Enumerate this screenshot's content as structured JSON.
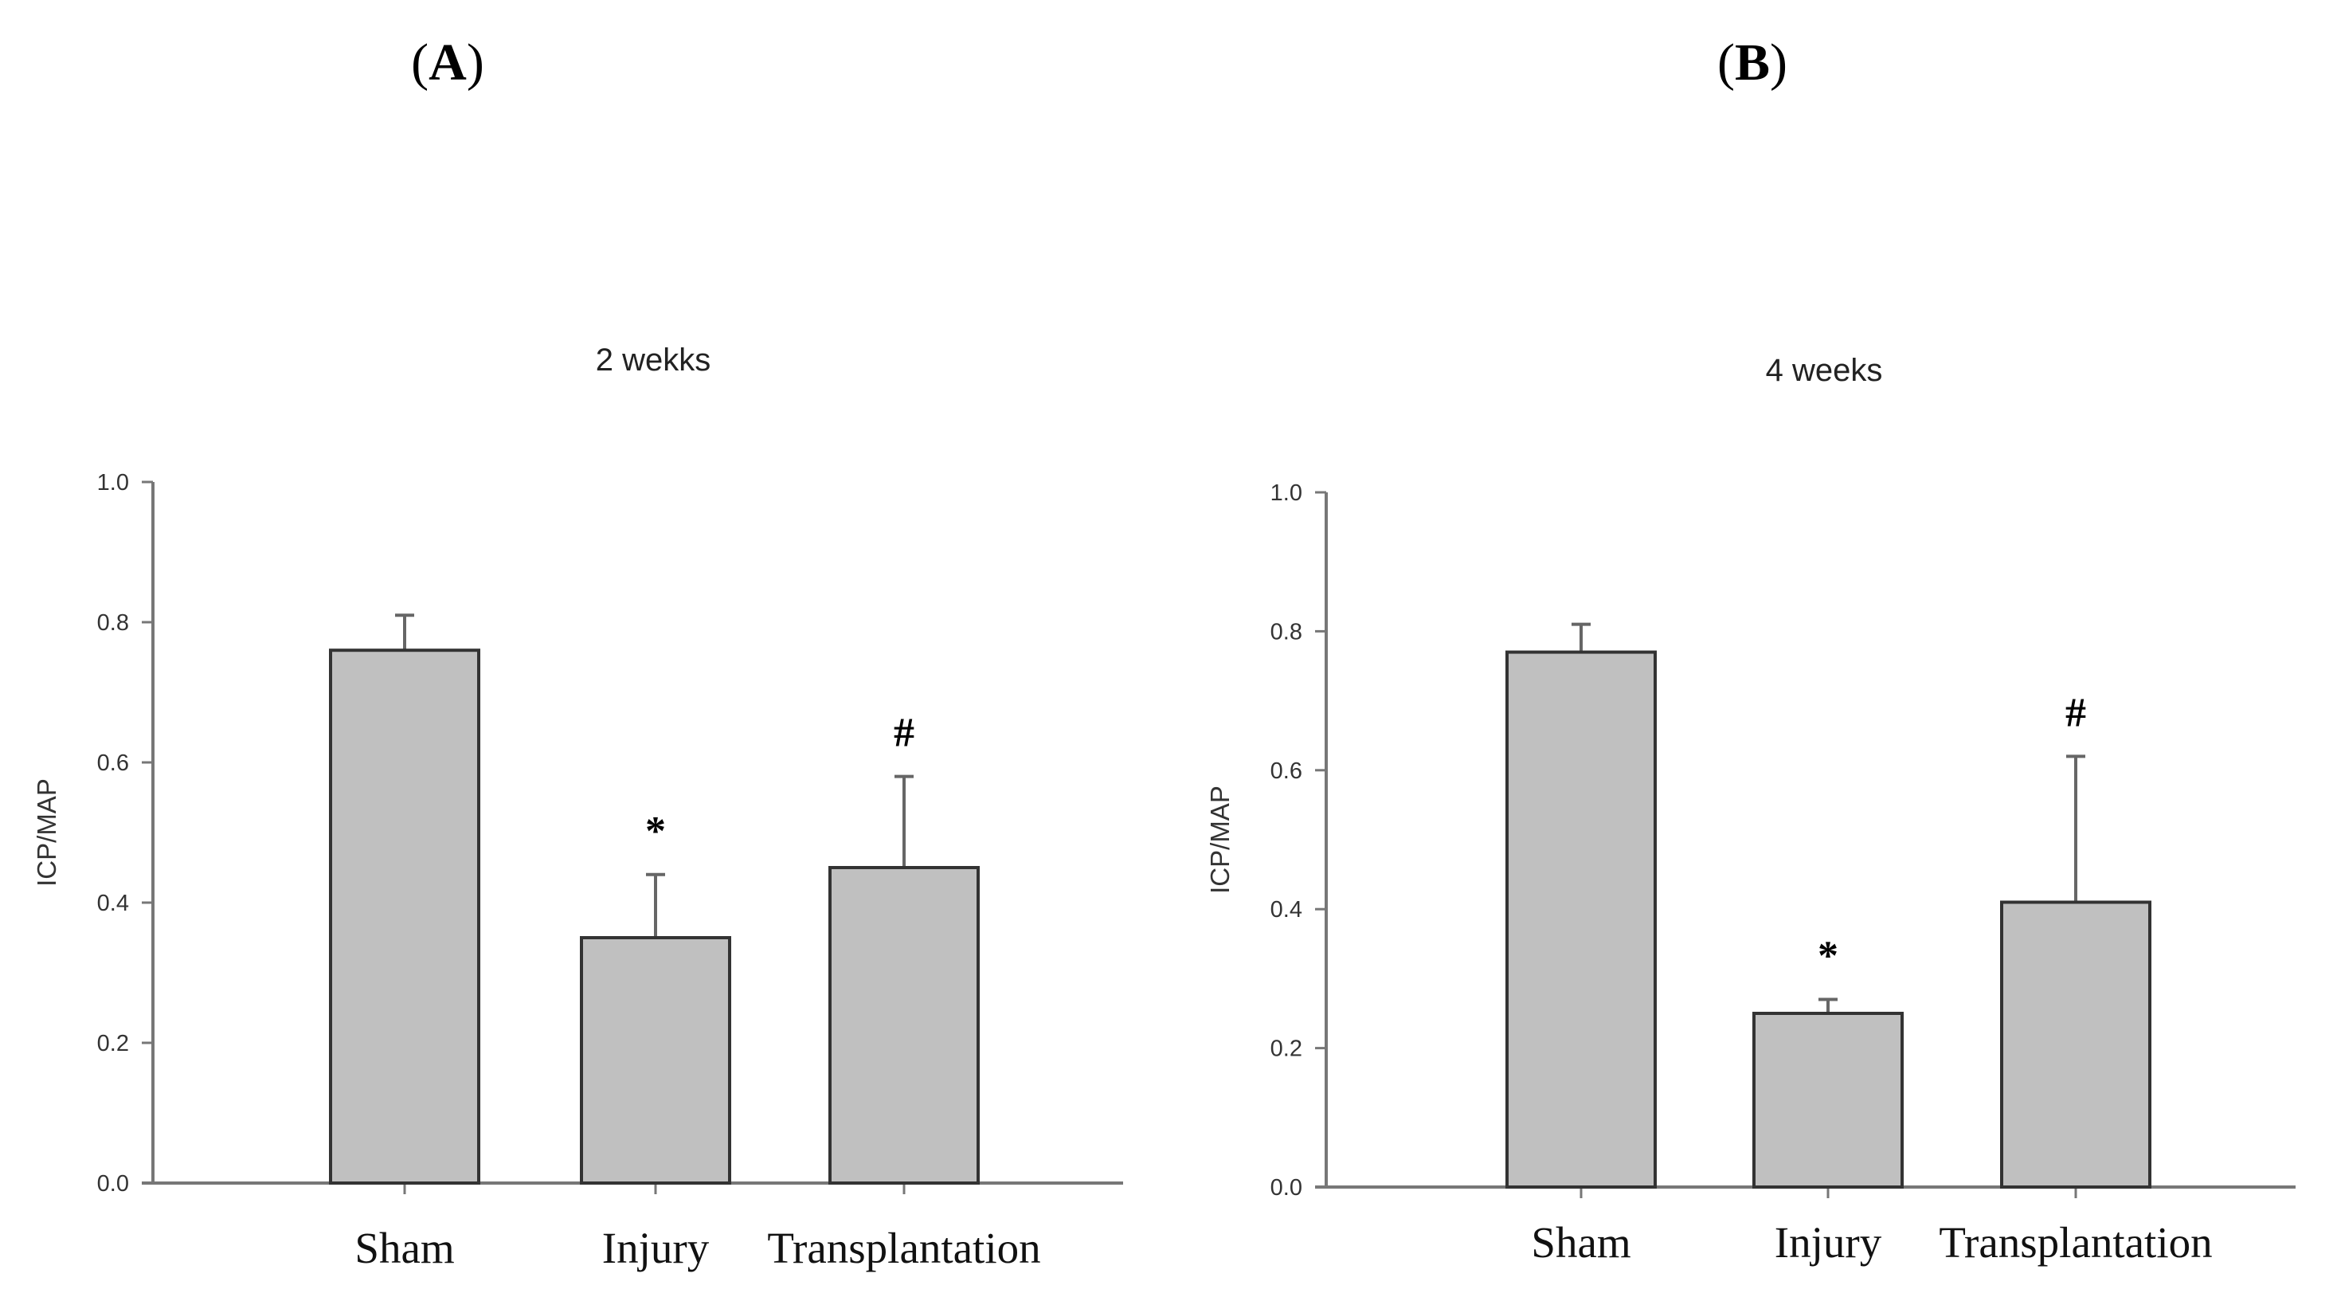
{
  "chart_data": [
    {
      "panel_label": "A",
      "type": "bar",
      "title": "2 wekks",
      "ylabel": "ICP/MAP",
      "xlabel": "",
      "ylim": [
        0,
        1.0
      ],
      "yticks": [
        "0.0",
        "0.2",
        "0.4",
        "0.6",
        "0.8",
        "1.0"
      ],
      "categories": [
        "Sham",
        "Injury",
        "Transplantation"
      ],
      "values": [
        0.76,
        0.35,
        0.45
      ],
      "errors": [
        0.05,
        0.09,
        0.13
      ],
      "annotations": [
        "",
        "*",
        "#"
      ]
    },
    {
      "panel_label": "B",
      "type": "bar",
      "title": "4 weeks",
      "ylabel": "ICP/MAP",
      "xlabel": "",
      "ylim": [
        0,
        1.0
      ],
      "yticks": [
        "0.0",
        "0.2",
        "0.4",
        "0.6",
        "0.8",
        "1.0"
      ],
      "categories": [
        "Sham",
        "Injury",
        "Transplantation"
      ],
      "values": [
        0.77,
        0.25,
        0.41
      ],
      "errors": [
        0.04,
        0.02,
        0.21
      ],
      "annotations": [
        "",
        "*",
        "#"
      ]
    }
  ]
}
